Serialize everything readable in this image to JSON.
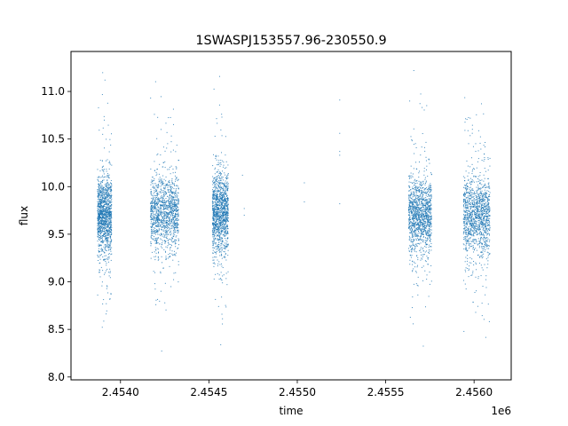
{
  "chart_data": {
    "type": "scatter",
    "title": "1SWASPJ153557.96-230550.9",
    "xlabel": "time",
    "ylabel": "flux",
    "x_offset_label": "1e6",
    "x_multiplier": 1000000,
    "xlim": [
      2453720,
      2456210
    ],
    "ylim": [
      7.97,
      11.42
    ],
    "x_ticks": [
      2.454,
      2.4545,
      2.455,
      2.4555,
      2.456
    ],
    "x_tick_labels": [
      "2.4540",
      "2.4545",
      "2.4550",
      "2.4555",
      "2.4560"
    ],
    "y_ticks": [
      8.0,
      8.5,
      9.0,
      9.5,
      10.0,
      10.5,
      11.0
    ],
    "y_tick_labels": [
      "8.0",
      "8.5",
      "9.0",
      "9.5",
      "10.0",
      "10.5",
      "11.0"
    ],
    "grid": false,
    "legend": "none",
    "marker_color": "#1f77b4",
    "series": [
      {
        "observing_seasons": [
          {
            "x_range": [
              2453870,
              2453950
            ],
            "y_center": 9.7,
            "y_spread": 0.2,
            "y_min": 8.18,
            "y_max": 11.27
          },
          {
            "x_range": [
              2454170,
              2454330
            ],
            "y_center": 9.73,
            "y_spread": 0.19,
            "y_min": 8.15,
            "y_max": 11.27
          },
          {
            "x_range": [
              2454520,
              2454610
            ],
            "y_center": 9.72,
            "y_spread": 0.2,
            "y_min": 8.12,
            "y_max": 11.27
          },
          {
            "x_range": [
              2455630,
              2455760
            ],
            "y_center": 9.7,
            "y_spread": 0.19,
            "y_min": 8.28,
            "y_max": 11.25
          },
          {
            "x_range": [
              2455940,
              2456090
            ],
            "y_center": 9.7,
            "y_spread": 0.2,
            "y_min": 8.18,
            "y_max": 11.22
          }
        ],
        "isolated_points": [
          {
            "x": 2454690,
            "y": 10.12
          },
          {
            "x": 2454700,
            "y": 9.77
          },
          {
            "x": 2454700,
            "y": 9.7
          },
          {
            "x": 2455040,
            "y": 10.04
          },
          {
            "x": 2455040,
            "y": 9.84
          },
          {
            "x": 2455240,
            "y": 10.91
          },
          {
            "x": 2455240,
            "y": 10.56
          },
          {
            "x": 2455240,
            "y": 10.37
          },
          {
            "x": 2455240,
            "y": 10.33
          },
          {
            "x": 2455240,
            "y": 9.82
          }
        ]
      }
    ]
  }
}
